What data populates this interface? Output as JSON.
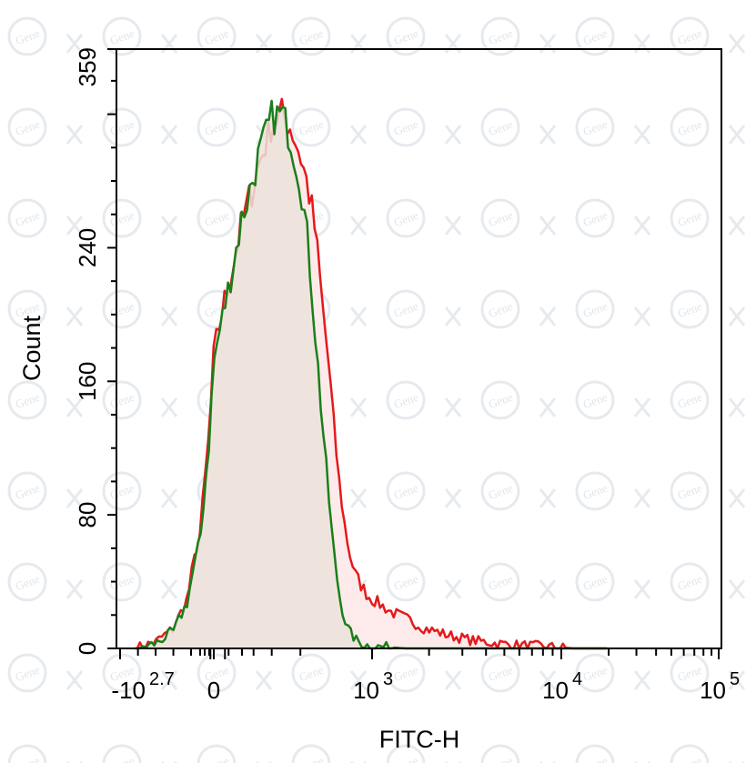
{
  "chart_data": {
    "type": "area",
    "title": "",
    "xlabel": "FITC-H",
    "ylabel": "Count",
    "x_scale": "biexponential",
    "ylim": [
      0,
      359
    ],
    "y_ticks": [
      {
        "value": 0,
        "label": "0"
      },
      {
        "value": 80,
        "label": "80"
      },
      {
        "value": 160,
        "label": "160"
      },
      {
        "value": 240,
        "label": "240"
      },
      {
        "value": 359,
        "label": "359"
      }
    ],
    "x_ticks": [
      {
        "value": -501,
        "base": "-10",
        "exp": "2.7"
      },
      {
        "value": 0,
        "base": "0",
        "exp": ""
      },
      {
        "value": 1000,
        "base": "10",
        "exp": "3"
      },
      {
        "value": 10000,
        "base": "10",
        "exp": "4"
      },
      {
        "value": 100000,
        "base": "10",
        "exp": "5"
      }
    ],
    "grid": false,
    "legend": "none",
    "series": [
      {
        "color": "#e31a1c",
        "fill": "#fde8e8",
        "points": [
          [
            -420,
            0
          ],
          [
            -300,
            4
          ],
          [
            -200,
            12
          ],
          [
            -120,
            30
          ],
          [
            -60,
            70
          ],
          [
            -20,
            130
          ],
          [
            10,
            200
          ],
          [
            40,
            255
          ],
          [
            70,
            290
          ],
          [
            100,
            315
          ],
          [
            130,
            320
          ],
          [
            160,
            312
          ],
          [
            200,
            295
          ],
          [
            240,
            275
          ],
          [
            280,
            250
          ],
          [
            330,
            205
          ],
          [
            380,
            170
          ],
          [
            430,
            130
          ],
          [
            480,
            100
          ],
          [
            540,
            75
          ],
          [
            600,
            58
          ],
          [
            680,
            45
          ],
          [
            780,
            38
          ],
          [
            900,
            32
          ],
          [
            1050,
            28
          ],
          [
            1250,
            22
          ],
          [
            1500,
            18
          ],
          [
            1900,
            12
          ],
          [
            2500,
            8
          ],
          [
            3300,
            5
          ],
          [
            4500,
            3
          ],
          [
            6000,
            2
          ],
          [
            8500,
            1
          ],
          [
            12000,
            0
          ],
          [
            100000,
            0
          ]
        ]
      },
      {
        "color": "#1a7f1a",
        "fill": "#ece3da",
        "points": [
          [
            -400,
            0
          ],
          [
            -300,
            3
          ],
          [
            -200,
            10
          ],
          [
            -120,
            28
          ],
          [
            -60,
            65
          ],
          [
            -20,
            125
          ],
          [
            10,
            195
          ],
          [
            40,
            258
          ],
          [
            70,
            295
          ],
          [
            100,
            318
          ],
          [
            130,
            320
          ],
          [
            160,
            305
          ],
          [
            200,
            280
          ],
          [
            240,
            240
          ],
          [
            280,
            190
          ],
          [
            320,
            145
          ],
          [
            360,
            108
          ],
          [
            400,
            75
          ],
          [
            440,
            50
          ],
          [
            490,
            30
          ],
          [
            540,
            18
          ],
          [
            600,
            10
          ],
          [
            700,
            5
          ],
          [
            850,
            2
          ],
          [
            1100,
            1
          ],
          [
            1500,
            0
          ],
          [
            100000,
            0
          ]
        ]
      }
    ]
  },
  "watermark": "Gene"
}
